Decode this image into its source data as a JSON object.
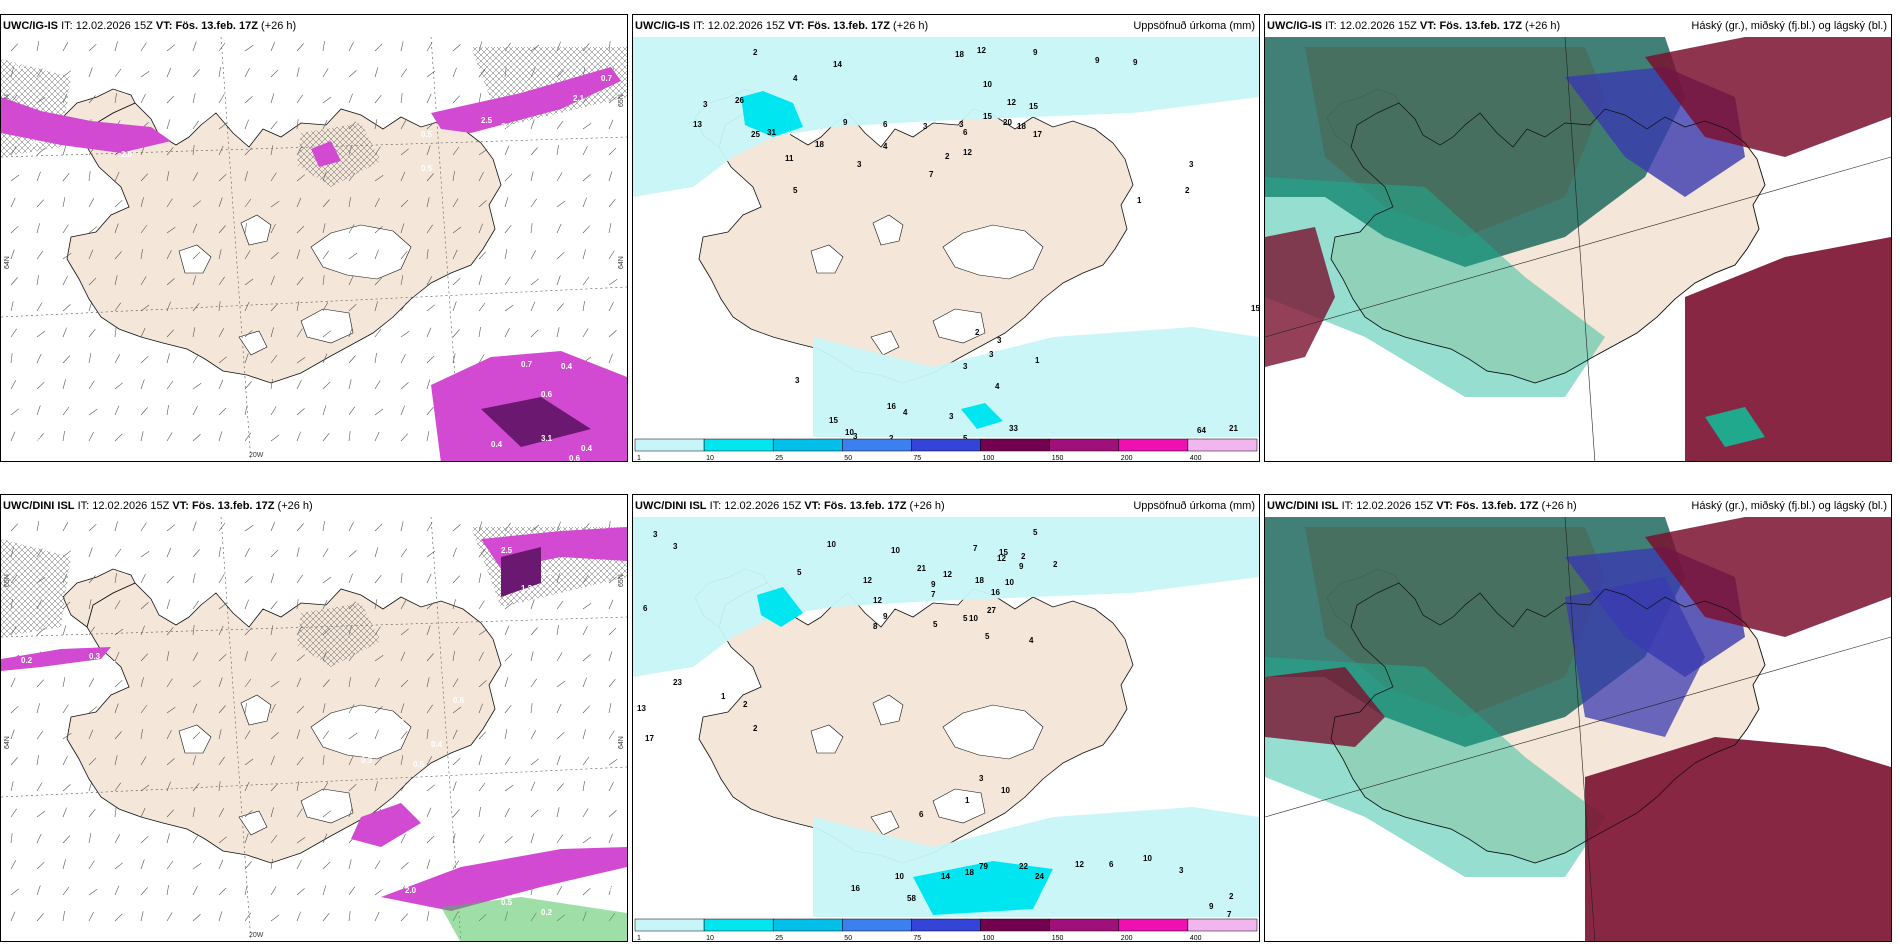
{
  "panels": [
    {
      "model": "UWC/IG-IS",
      "it_label": "IT:",
      "it_value": "12.02.2026 15Z",
      "vt_label": "VT:",
      "vt_value": "Fös. 13.feb. 17Z",
      "lead": "(+26 h)",
      "title_right": "",
      "kind": "wind",
      "labels": [
        "0.2",
        "0.6",
        "2.0",
        "0.5",
        "0.5",
        "0.7",
        "0.4",
        "0.6",
        "2.5",
        "3.1",
        "2.1",
        "0.7",
        "0.4",
        "0.6",
        "3.1",
        "0.4",
        "0.6",
        "0.8"
      ],
      "lon_left": "20W",
      "lon_right": "15W",
      "lat_a": "65N",
      "lat_b": "64N"
    },
    {
      "model": "UWC/IG-IS",
      "it_label": "IT:",
      "it_value": "12.02.2026 15Z",
      "vt_label": "VT:",
      "vt_value": "Fös. 13.feb. 17Z",
      "lead": "(+26 h)",
      "title_right": "Uppsöfnuð úrkoma (mm)",
      "kind": "precip",
      "labels": [
        "2",
        "14",
        "18",
        "12",
        "9",
        "9",
        "9",
        "3",
        "13",
        "3",
        "4",
        "10",
        "12",
        "15",
        "26",
        "31",
        "25",
        "9",
        "6",
        "15",
        "20",
        "18",
        "17",
        "6",
        "3",
        "4",
        "11",
        "18",
        "3",
        "12",
        "2",
        "7",
        "5",
        "3",
        "2",
        "1",
        "15",
        "2",
        "3",
        "3",
        "3",
        "4",
        "3",
        "1",
        "3",
        "33",
        "64",
        "21",
        "15",
        "10",
        "16",
        "4",
        "5",
        "2",
        "3"
      ]
    },
    {
      "model": "UWC/IG-IS",
      "it_label": "IT:",
      "it_value": "12.02.2026 15Z",
      "vt_label": "VT:",
      "vt_value": "Fös. 13.feb. 17Z",
      "lead": "(+26 h)",
      "title_right": "Háský (gr.), miðský (fj.bl.) og lágský (bl.)",
      "kind": "cloud"
    },
    {
      "model": "UWC/DINI ISL",
      "it_label": "IT:",
      "it_value": "12.02.2026 15Z",
      "vt_label": "VT:",
      "vt_value": "Fös. 13.feb. 17Z",
      "lead": "(+26 h)",
      "title_right": "",
      "kind": "wind",
      "labels": [
        "0.2",
        "0.3",
        "0.4",
        "0.6",
        "0.3",
        "0.4",
        "0.3",
        "0.5",
        "3.2",
        "2.0",
        "0.5",
        "0.2",
        "0.4",
        "6.2",
        "0.8",
        "2.5",
        "1.4",
        "1.3"
      ],
      "lon_left": "20W",
      "lon_right": "",
      "lat_a": "65N",
      "lat_b": "64N"
    },
    {
      "model": "UWC/DINI ISL",
      "it_label": "IT:",
      "it_value": "12.02.2026 15Z",
      "vt_label": "VT:",
      "vt_value": "Fös. 13.feb. 17Z",
      "lead": "(+26 h)",
      "title_right": "Uppsöfnuð úrkoma (mm)",
      "kind": "precip",
      "labels": [
        "3",
        "3",
        "6",
        "10",
        "10",
        "21",
        "12",
        "18",
        "12",
        "10",
        "9",
        "5",
        "5",
        "12",
        "12",
        "7",
        "9",
        "9",
        "8",
        "27",
        "16",
        "5",
        "5",
        "4",
        "10",
        "7",
        "15",
        "2",
        "2",
        "5",
        "23",
        "13",
        "17",
        "1",
        "2",
        "2",
        "10",
        "6",
        "3",
        "1",
        "10",
        "16",
        "14",
        "18",
        "58",
        "79",
        "22",
        "24",
        "12",
        "6",
        "10",
        "3",
        "9",
        "7",
        "2"
      ]
    },
    {
      "model": "UWC/DINI ISL",
      "it_label": "IT:",
      "it_value": "12.02.2026 15Z",
      "vt_label": "VT:",
      "vt_value": "Fös. 13.feb. 17Z",
      "lead": "(+26 h)",
      "title_right": "Háský (gr.), miðský (fj.bl.) og lágský (bl.)",
      "kind": "cloud"
    }
  ],
  "precip_scale": {
    "ticks": [
      "1",
      "10",
      "25",
      "50",
      "75",
      "100",
      "150",
      "200",
      "400"
    ],
    "colors": [
      "#c8f5f8",
      "#00e6f0",
      "#00c0ea",
      "#3c7ff0",
      "#3444d8",
      "#740050",
      "#a0107a",
      "#ee10b0",
      "#f2b6ee"
    ]
  },
  "colors": {
    "land": "#f4e6d8",
    "sea": "#ffffff",
    "precip_light": "#c8f5f8",
    "precip_mid": "#00e6f0",
    "wind_magenta": "#d24ad2",
    "wind_dark": "#6a1870",
    "cloud_high": "#16b896",
    "cloud_mid": "#3a3ab0",
    "cloud_low": "#7a1030"
  }
}
